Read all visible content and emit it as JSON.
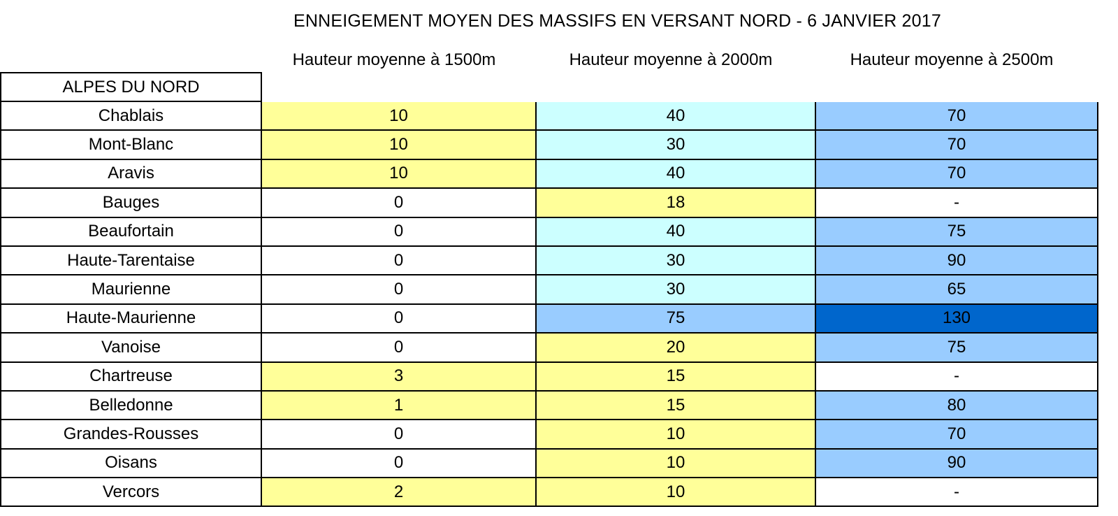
{
  "title": "ENNEIGEMENT MOYEN DES MASSIFS EN VERSANT NORD - 6 JANVIER 2017",
  "columns": [
    "Hauteur moyenne à 1500m",
    "Hauteur moyenne à 2000m",
    "Hauteur moyenne à 2500m"
  ],
  "region": "ALPES DU NORD",
  "colors": {
    "white": "#ffffff",
    "yellow": "#ffff99",
    "cyan": "#ccffff",
    "blue": "#99ccff",
    "dark_blue": "#0066cc"
  },
  "rows": [
    {
      "name": "Chablais",
      "v1500": "10",
      "v2000": "40",
      "v2500": "70",
      "c1500": "yellow",
      "c2000": "cyan",
      "c2500": "blue"
    },
    {
      "name": "Mont-Blanc",
      "v1500": "10",
      "v2000": "30",
      "v2500": "70",
      "c1500": "yellow",
      "c2000": "cyan",
      "c2500": "blue"
    },
    {
      "name": "Aravis",
      "v1500": "10",
      "v2000": "40",
      "v2500": "70",
      "c1500": "yellow",
      "c2000": "cyan",
      "c2500": "blue"
    },
    {
      "name": "Bauges",
      "v1500": "0",
      "v2000": "18",
      "v2500": "-",
      "c1500": "white",
      "c2000": "yellow",
      "c2500": "white"
    },
    {
      "name": "Beaufortain",
      "v1500": "0",
      "v2000": "40",
      "v2500": "75",
      "c1500": "white",
      "c2000": "cyan",
      "c2500": "blue"
    },
    {
      "name": "Haute-Tarentaise",
      "v1500": "0",
      "v2000": "30",
      "v2500": "90",
      "c1500": "white",
      "c2000": "cyan",
      "c2500": "blue"
    },
    {
      "name": "Maurienne",
      "v1500": "0",
      "v2000": "30",
      "v2500": "65",
      "c1500": "white",
      "c2000": "cyan",
      "c2500": "blue"
    },
    {
      "name": "Haute-Maurienne",
      "v1500": "0",
      "v2000": "75",
      "v2500": "130",
      "c1500": "white",
      "c2000": "blue",
      "c2500": "dark"
    },
    {
      "name": "Vanoise",
      "v1500": "0",
      "v2000": "20",
      "v2500": "75",
      "c1500": "white",
      "c2000": "yellow",
      "c2500": "blue"
    },
    {
      "name": "Chartreuse",
      "v1500": "3",
      "v2000": "15",
      "v2500": "-",
      "c1500": "yellow",
      "c2000": "yellow",
      "c2500": "white"
    },
    {
      "name": "Belledonne",
      "v1500": "1",
      "v2000": "15",
      "v2500": "80",
      "c1500": "yellow",
      "c2000": "yellow",
      "c2500": "blue"
    },
    {
      "name": "Grandes-Rousses",
      "v1500": "0",
      "v2000": "10",
      "v2500": "70",
      "c1500": "white",
      "c2000": "yellow",
      "c2500": "blue"
    },
    {
      "name": "Oisans",
      "v1500": "0",
      "v2000": "10",
      "v2500": "90",
      "c1500": "white",
      "c2000": "yellow",
      "c2500": "blue"
    },
    {
      "name": "Vercors",
      "v1500": "2",
      "v2000": "10",
      "v2500": "-",
      "c1500": "yellow",
      "c2000": "yellow",
      "c2500": "white"
    }
  ]
}
